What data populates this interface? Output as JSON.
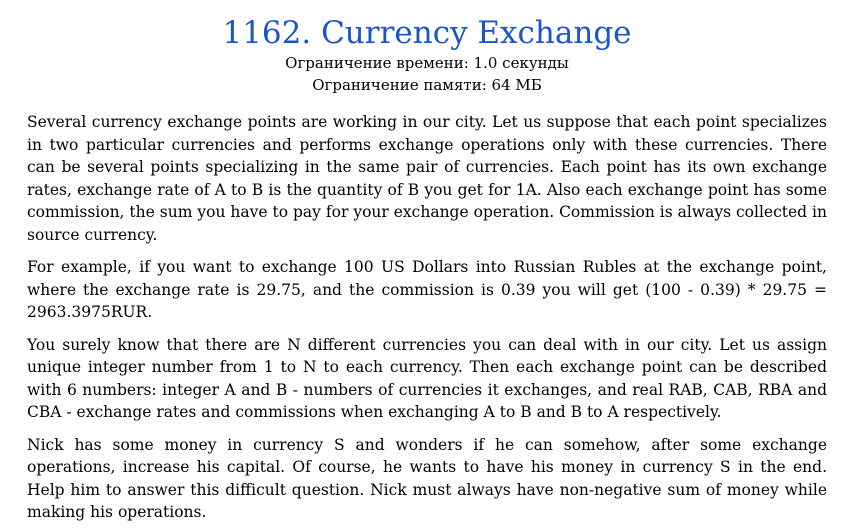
{
  "problem": {
    "title": "1162. Currency Exchange",
    "time_limit": "Ограничение времени: 1.0 секунды",
    "memory_limit": "Ограничение памяти: 64 МБ",
    "paragraphs": [
      "Several currency exchange points are working in our city. Let us suppose that each point specializes in two particular currencies and performs exchange operations only with these currencies. There can be several points specializing in the same pair of currencies. Each point has its own exchange rates, exchange rate of A to B is the quantity of B you get for 1A. Also each exchange point has some commission, the sum you have to pay for your exchange operation. Commission is always collected in source currency.",
      "For example, if you want to exchange 100 US Dollars into Russian Rubles at the exchange point, where the exchange rate is 29.75, and the commission is 0.39 you will get (100 - 0.39) * 29.75 = 2963.3975RUR.",
      "You surely know that there are N different currencies you can deal with in our city. Let us assign unique integer number from 1 to N to each currency. Then each exchange point can be described with 6 numbers: integer A and B - numbers of currencies it exchanges, and real RAB, CAB, RBA and CBA - exchange rates and commissions when exchanging A to B and B to A respectively.",
      "Nick has some money in currency S and wonders if he can somehow, after some exchange operations, increase his capital. Of course, he wants to have his money in currency S in the end. Help him to answer this difficult question. Nick must always have non-negative sum of money while making his operations."
    ]
  }
}
